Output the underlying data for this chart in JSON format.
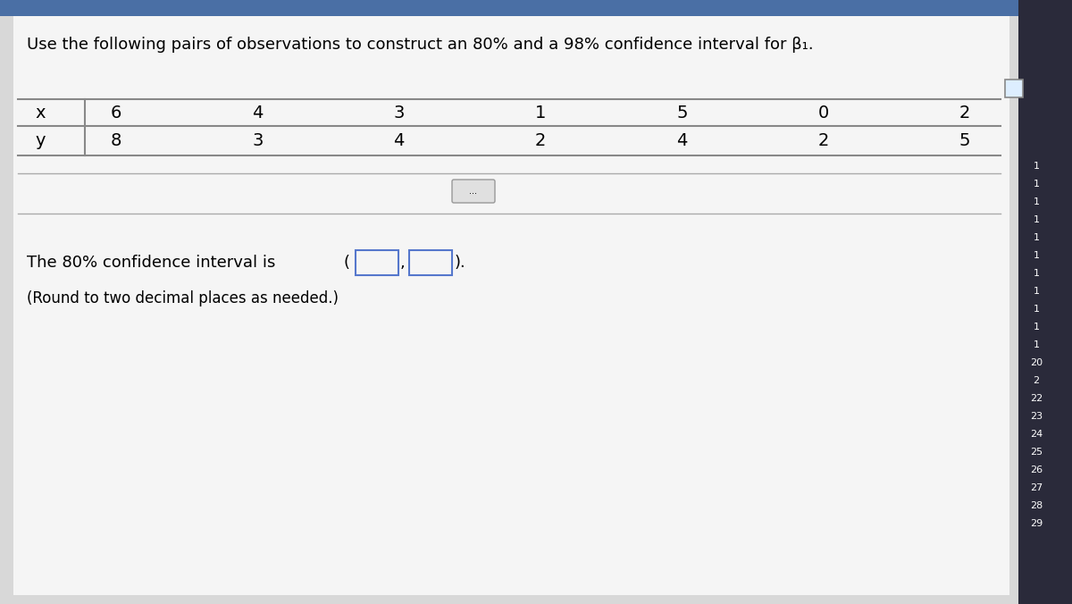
{
  "title": "Use the following pairs of observations to construct an 80% and a 98% confidence interval for β₁.",
  "x_label": "x",
  "y_label": "y",
  "x_values": [
    "6",
    "4",
    "3",
    "1",
    "5",
    "0",
    "2"
  ],
  "y_values": [
    "8",
    "3",
    "4",
    "2",
    "4",
    "2",
    "5"
  ],
  "ci_text": "The 80% confidence interval is",
  "note_text": "(Round to two decimal places as needed.)",
  "ellipsis_text": "...",
  "bg_color": "#d8d8d8",
  "panel_color": "#efefef",
  "text_color": "#000000",
  "table_line_color": "#888888",
  "right_bar_color": "#2a2a3a",
  "right_numbers": [
    "",
    "",
    "",
    "",
    "",
    "",
    "",
    "",
    "1",
    "1",
    "1",
    "1",
    "1",
    "1",
    "1",
    "1",
    "1",
    "1",
    "1",
    "20",
    "2",
    "22",
    "23",
    "24",
    "25",
    "26",
    "27",
    "28",
    "29"
  ],
  "box_border_color": "#5577cc",
  "top_bar_color": "#4a6fa5",
  "separator_color": "#aaaaaa"
}
